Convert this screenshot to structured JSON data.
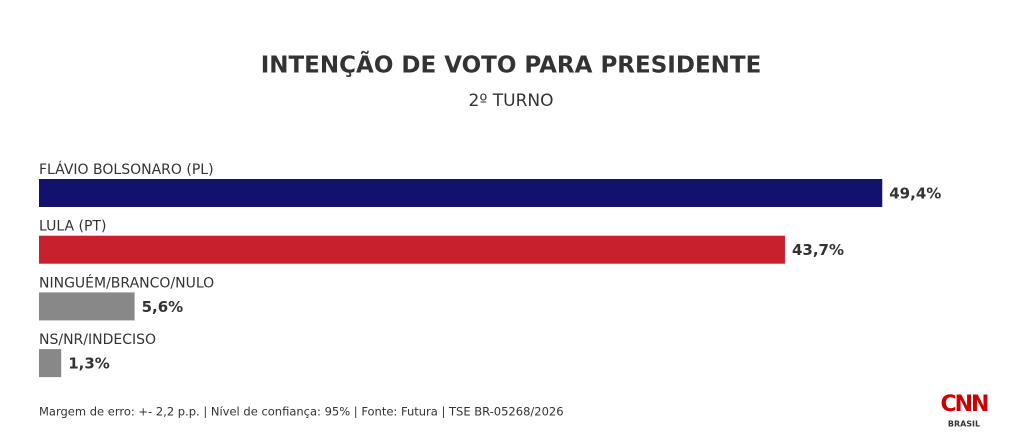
{
  "chart_data": {
    "type": "bar",
    "orientation": "horizontal",
    "title": "INTENÇÃO DE VOTO PARA PRESIDENTE",
    "subtitle": "2º TURNO",
    "categories": [
      "FLÁVIO BOLSONARO (PL)",
      "LULA (PT)",
      "NINGUÉM/BRANCO/NULO",
      "NS/NR/INDECISO"
    ],
    "values": [
      49.4,
      43.7,
      5.6,
      1.3
    ],
    "value_labels": [
      "49,4%",
      "43,7%",
      "5,6%",
      "1,3%"
    ],
    "colors": [
      "#13116e",
      "#c8202c",
      "#888888",
      "#888888"
    ],
    "footnote": "Margem de erro: +- 2,2 p.p. | Nível de confiança: 95% | Fonte: Futura | TSE BR-05268/2026",
    "logo": {
      "name": "CNN",
      "sub": "BRASIL"
    }
  }
}
